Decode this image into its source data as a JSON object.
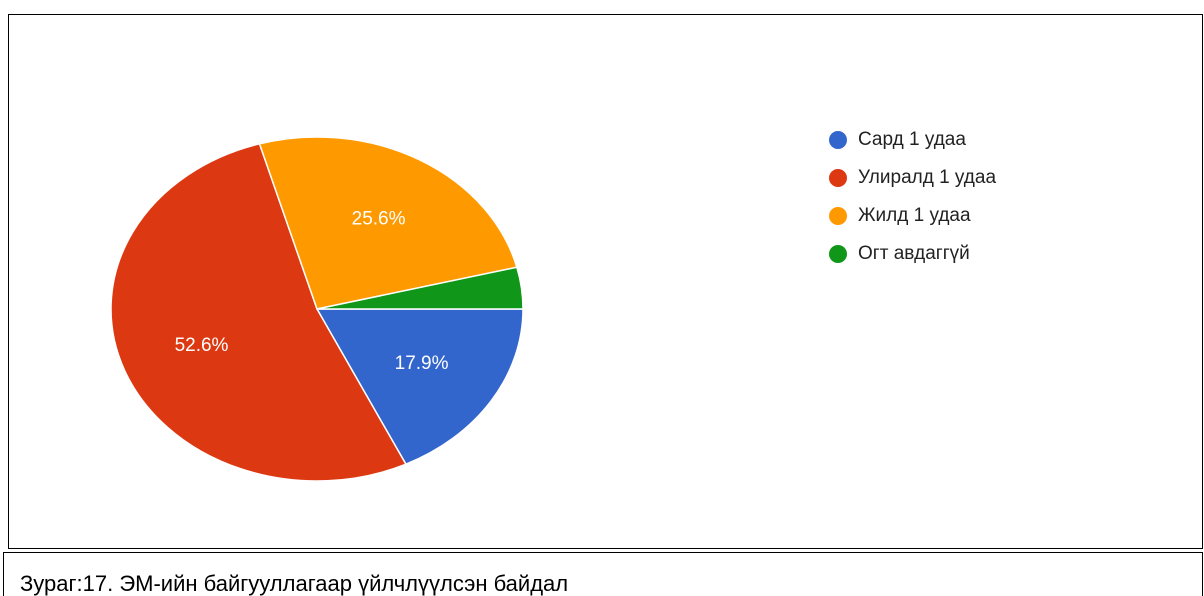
{
  "chart_data": {
    "type": "pie",
    "categories": [
      "Сард 1 удаа",
      "Улиралд 1 удаа",
      "Жилд 1 удаа",
      "Огт авдаггүй"
    ],
    "values": [
      17.9,
      52.6,
      25.6,
      3.9
    ],
    "value_labels": [
      "17.9%",
      "52.6%",
      "25.6%",
      null
    ],
    "colors": [
      "#3366cc",
      "#dc3912",
      "#ff9900",
      "#109618"
    ],
    "legend": "right"
  },
  "caption": "Зураг:17. ЭМ-ийн байгууллагаар үйлчлүүлсэн байдал"
}
